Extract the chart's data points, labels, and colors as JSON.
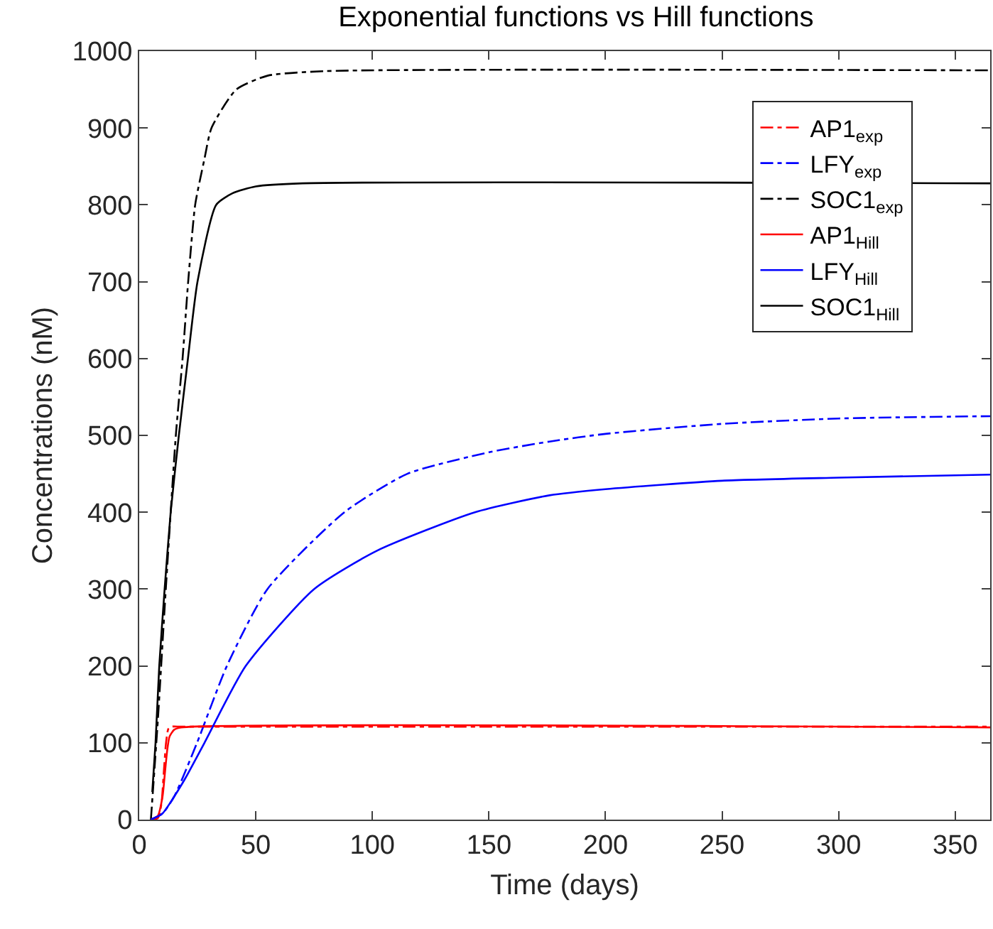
{
  "chart_data": {
    "type": "line",
    "title": "Exponential functions vs Hill functions",
    "xlabel": "Time (days)",
    "ylabel": "Concentrations (nM)",
    "xlim": [
      0,
      365
    ],
    "xticks": [
      0,
      50,
      100,
      150,
      200,
      250,
      300,
      350
    ],
    "ylim": [
      0,
      1000
    ],
    "yticks": [
      0,
      100,
      200,
      300,
      400,
      500,
      600,
      700,
      800,
      900,
      1000
    ],
    "legend": "top right",
    "marker": "none",
    "series": [
      {
        "name": "AP1$_{exp}$",
        "color": "#ff0000",
        "line_style": "dashdot",
        "x": [
          5,
          8,
          9.5,
          10.5,
          11.5,
          12.5,
          14,
          18,
          365
        ],
        "values": [
          0,
          2,
          20,
          60,
          100,
          118,
          121,
          121,
          121
        ]
      },
      {
        "name": "LFY$_{exp}$",
        "color": "#0000ff",
        "line_style": "dashdot",
        "x": [
          5,
          10,
          15,
          24.8,
          37.6,
          55,
          88,
          115,
          150,
          176,
          200,
          250,
          300,
          365
        ],
        "values": [
          0,
          8,
          30,
          100,
          200,
          300,
          400,
          450,
          478,
          492,
          502,
          515,
          522,
          525
        ]
      },
      {
        "name": "SOC1$_{exp}$",
        "color": "#000000",
        "line_style": "dashdot",
        "x": [
          5,
          8,
          11.4,
          15.7,
          18.6,
          21,
          24,
          28,
          31,
          41.6,
          55,
          80,
          365
        ],
        "values": [
          0,
          130,
          300,
          500,
          600,
          700,
          800,
          860,
          900,
          950,
          968,
          974,
          975
        ]
      },
      {
        "name": "AP1$_{Hill}$",
        "color": "#ff0000",
        "line_style": "solid",
        "x": [
          5,
          8,
          10,
          11,
          12,
          13,
          15,
          18,
          365
        ],
        "values": [
          0,
          5,
          30,
          60,
          90,
          108,
          117,
          120,
          120
        ]
      },
      {
        "name": "LFY$_{Hill}$",
        "color": "#0000ff",
        "line_style": "solid",
        "x": [
          5,
          10,
          15,
          20,
          28,
          45.7,
          75,
          102,
          144,
          176,
          200,
          250,
          300,
          365
        ],
        "values": [
          0,
          8,
          30,
          55,
          100,
          200,
          300,
          350,
          400,
          422,
          430,
          441,
          445,
          449
        ]
      },
      {
        "name": "SOC1$_{Hill}$",
        "color": "#000000",
        "line_style": "solid",
        "x": [
          5.6,
          7,
          8.6,
          10.9,
          13.5,
          17,
          20.9,
          25,
          33,
          40,
          50,
          70,
          365
        ],
        "values": [
          36,
          100,
          200,
          300,
          400,
          500,
          600,
          700,
          800,
          815,
          824,
          828,
          828
        ]
      }
    ]
  }
}
